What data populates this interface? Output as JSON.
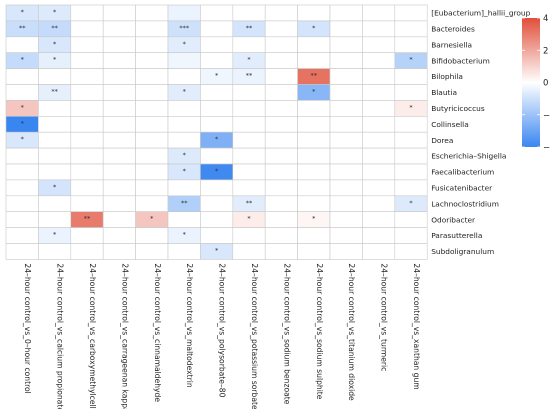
{
  "chart_data": {
    "type": "heatmap",
    "title": "",
    "xlabel": "",
    "ylabel": "",
    "rows": [
      "[Eubacterium]_hallii_group",
      "Bacteroides",
      "Barnesiella",
      "Bifidobacterium",
      "Bilophila",
      "Blautia",
      "Butyricicoccus",
      "Collinsella",
      "Dorea",
      "Escherichia–Shigella",
      "Faecalibacterium",
      "Fusicatenibacter",
      "Lachnoclostridium",
      "Odoribacter",
      "Parasutterella",
      "Subdoligranulum"
    ],
    "columns": [
      "24–hour control_vs_0–hour control",
      "24–hour control_vs_calcium propionate",
      "24–hour control_vs_carboxymethylcellulose",
      "24–hour control_vs_carrageenan kappa",
      "24–hour control_vs_cinnamaldehyde",
      "24–hour control_vs_maltodextrin",
      "24–hour control_vs_polysorbate–80",
      "24–hour control_vs_potassium sorbate",
      "24–hour control_vs_sodium benzoate",
      "24–hour control_vs_sodium sulphite",
      "24–hour control_vs_titanium dioxide",
      "24–hour control_vs_turmeric",
      "24–hour control_vs_xanthan gum"
    ],
    "values": [
      [
        -0.8,
        -0.7,
        0,
        0,
        0,
        -0.4,
        0,
        0,
        0,
        0,
        0,
        0,
        0
      ],
      [
        -1.1,
        -1.2,
        0,
        0,
        0,
        -1.0,
        0,
        -0.9,
        0,
        -0.9,
        0,
        0,
        0
      ],
      [
        0,
        -0.8,
        0,
        0,
        0,
        -0.6,
        0,
        0,
        0,
        0,
        0,
        0,
        0
      ],
      [
        -1.2,
        -0.5,
        0,
        0,
        0,
        -0.3,
        0,
        -0.6,
        0,
        0,
        0,
        0,
        -1.5
      ],
      [
        0,
        0,
        0,
        0,
        0,
        0,
        -0.3,
        -0.4,
        0,
        3.2,
        0,
        0,
        0
      ],
      [
        0,
        -0.5,
        0,
        0,
        0,
        -0.6,
        0,
        0,
        0,
        -2.4,
        0,
        0,
        0
      ],
      [
        1.3,
        0,
        0,
        0,
        0,
        0,
        0,
        0,
        0,
        0,
        0,
        0,
        0.4
      ],
      [
        -4.0,
        0,
        0,
        0,
        0,
        0,
        0,
        0,
        0,
        0,
        0,
        0,
        0
      ],
      [
        -0.8,
        0,
        0,
        0,
        0,
        0,
        -2.6,
        0,
        0,
        0,
        0,
        0,
        0
      ],
      [
        0,
        0,
        0,
        0,
        0,
        -0.7,
        0,
        0,
        0,
        0,
        0,
        0,
        0
      ],
      [
        0,
        0,
        0,
        0,
        0,
        -0.8,
        -3.9,
        0,
        0,
        0,
        0,
        0,
        0
      ],
      [
        0,
        -0.9,
        0,
        0,
        0,
        0,
        0,
        0,
        0,
        0,
        0,
        0,
        0
      ],
      [
        0,
        0,
        0,
        0,
        0,
        -1.6,
        0,
        -0.6,
        0,
        0,
        0,
        0,
        -0.7
      ],
      [
        0,
        0,
        3.0,
        0,
        1.3,
        0,
        0,
        0.4,
        0,
        0.2,
        0,
        0,
        0
      ],
      [
        0,
        -0.4,
        0,
        0,
        0,
        -0.4,
        0,
        0,
        0,
        0,
        0,
        0,
        0
      ],
      [
        0,
        0,
        0,
        0,
        0,
        0,
        -0.8,
        0,
        0,
        0,
        0,
        0,
        0
      ]
    ],
    "significance": [
      [
        "*",
        "*",
        "",
        "",
        "",
        "",
        "",
        "",
        "",
        "",
        "",
        "",
        ""
      ],
      [
        "**",
        "**",
        "",
        "",
        "",
        "***",
        "",
        "**",
        "",
        "*",
        "",
        "",
        ""
      ],
      [
        "",
        "*",
        "",
        "",
        "",
        "*",
        "",
        "",
        "",
        "",
        "",
        "",
        ""
      ],
      [
        "*",
        "*",
        "",
        "",
        "",
        "",
        "",
        "*",
        "",
        "",
        "",
        "",
        "*"
      ],
      [
        "",
        "",
        "",
        "",
        "",
        "",
        "*",
        "**",
        "",
        "**",
        "",
        "",
        ""
      ],
      [
        "",
        "**",
        "",
        "",
        "",
        "*",
        "",
        "",
        "",
        "*",
        "",
        "",
        ""
      ],
      [
        "*",
        "",
        "",
        "",
        "",
        "",
        "",
        "",
        "",
        "",
        "",
        "",
        "*"
      ],
      [
        "*",
        "",
        "",
        "",
        "",
        "",
        "",
        "",
        "",
        "",
        "",
        "",
        ""
      ],
      [
        "*",
        "",
        "",
        "",
        "",
        "",
        "*",
        "",
        "",
        "",
        "",
        "",
        ""
      ],
      [
        "",
        "",
        "",
        "",
        "",
        "*",
        "",
        "",
        "",
        "",
        "",
        "",
        ""
      ],
      [
        "",
        "",
        "",
        "",
        "",
        "*",
        "*",
        "",
        "",
        "",
        "",
        "",
        ""
      ],
      [
        "",
        "*",
        "",
        "",
        "",
        "",
        "",
        "",
        "",
        "",
        "",
        "",
        ""
      ],
      [
        "",
        "",
        "",
        "",
        "",
        "**",
        "",
        "**",
        "",
        "",
        "",
        "",
        "*"
      ],
      [
        "",
        "",
        "**",
        "",
        "*",
        "",
        "",
        "*",
        "",
        "*",
        "",
        "",
        ""
      ],
      [
        "",
        "*",
        "",
        "",
        "",
        "*",
        "",
        "",
        "",
        "",
        "",
        "",
        ""
      ],
      [
        "",
        "",
        "",
        "",
        "",
        "",
        "*",
        "",
        "",
        "",
        "",
        "",
        ""
      ]
    ],
    "color_scale": {
      "min": -4,
      "max": 4,
      "ticks": [
        4,
        2,
        0,
        -2,
        -4
      ],
      "low_color": "#3a86f0",
      "mid_color": "#ffffff",
      "high_color": "#e04f3a"
    },
    "legend_position": "right"
  }
}
